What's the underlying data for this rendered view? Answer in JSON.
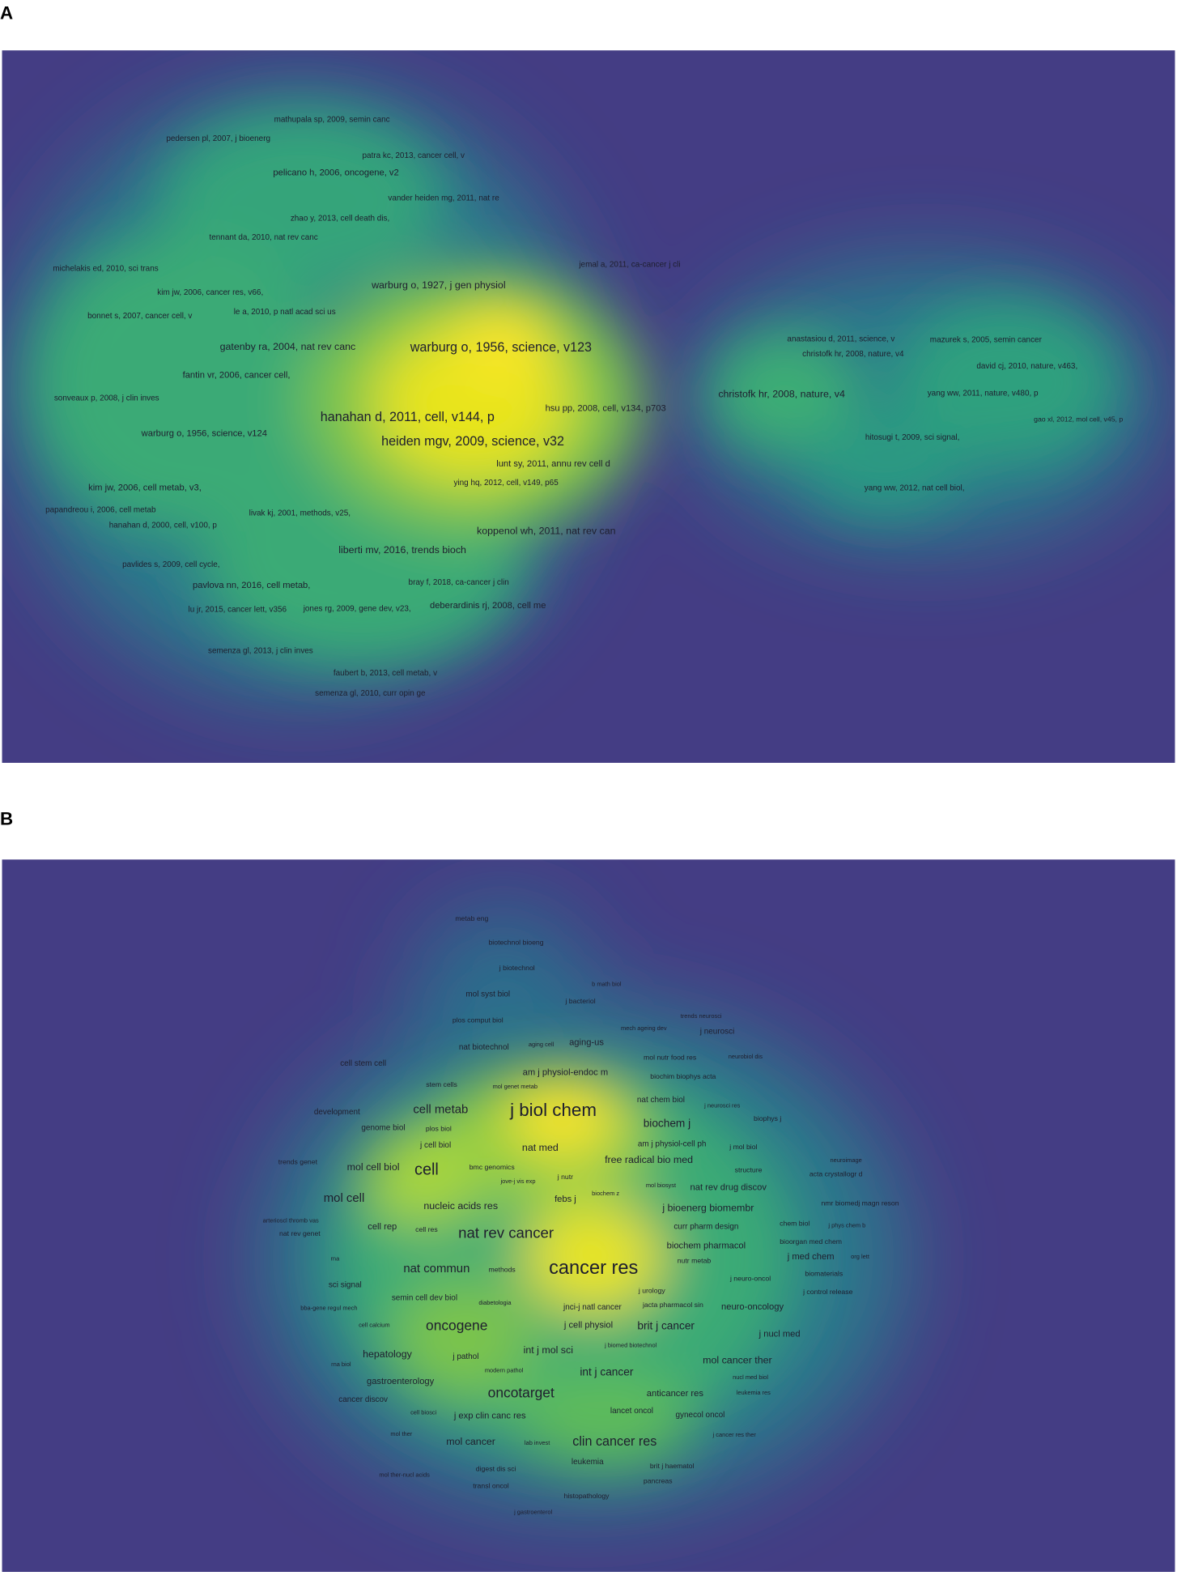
{
  "panel_a": {
    "label": "A",
    "items": [
      "mathupala sp, 2009, semin canc",
      "pedersen pl, 2007, j bioenerg",
      "patra kc, 2013, cancer cell, v",
      "pelicano h, 2006, oncogene, v2",
      "vander heiden mg, 2011, nat re",
      "zhao y, 2013, cell death dis,",
      "tennant da, 2010, nat rev canc",
      "michelakis ed, 2010, sci trans",
      "jemal a, 2011, ca-cancer j cli",
      "warburg o, 1927, j gen physiol",
      "kim jw, 2006, cancer res, v66,",
      "le a, 2010, p natl acad sci us",
      "bonnet s, 2007, cancer cell, v",
      "gatenby ra, 2004, nat rev canc",
      "warburg o, 1956, science, v123",
      "fantin vr, 2006, cancer cell,",
      "sonveaux p, 2008, j clin inves",
      "christofk hr, 2008, nature, v4",
      "hsu pp, 2008, cell, v134, p703",
      "hanahan d, 2011, cell, v144, p",
      "warburg o, 1956, science, v124",
      "heiden mgv, 2009, science, v32",
      "lunt sy, 2011, annu rev cell d",
      "ying hq, 2012, cell, v149, p65",
      "kim jw, 2006, cell metab, v3,",
      "papandreou i, 2006, cell metab",
      "livak kj, 2001, methods, v25,",
      "hanahan d, 2000, cell, v100, p",
      "koppenol wh, 2011, nat rev can",
      "liberti mv, 2016, trends bioch",
      "pavlides s, 2009, cell cycle,",
      "bray f, 2018, ca-cancer j clin",
      "pavlova nn, 2016, cell metab,",
      "lu jr, 2015, cancer lett, v356",
      "jones rg, 2009, gene dev, v23,",
      "deberardinis rj, 2008, cell me",
      "semenza gl, 2013, j clin inves",
      "faubert b, 2013, cell metab, v",
      "semenza gl, 2010, curr opin ge",
      "anastasiou d, 2011, science, v",
      "mazurek s, 2005, semin cancer",
      "christofk hr, 2008, nature, v4",
      "david cj, 2010, nature, v463,",
      "yang ww, 2011, nature, v480, p",
      "gao xl, 2012, mol cell, v45, p",
      "hitosugi t, 2009, sci signal,",
      "yang ww, 2012, nat cell biol,"
    ]
  },
  "panel_b": {
    "label": "B",
    "items": [
      "metab eng",
      "biotechnol bioeng",
      "j biotechnol",
      "b math biol",
      "mol syst biol",
      "j bacteriol",
      "trends neurosci",
      "plos comput biol",
      "mech ageing dev",
      "j neurosci",
      "nat biotechnol",
      "aging cell",
      "aging-us",
      "mol nutr food res",
      "neurobiol dis",
      "cell stem cell",
      "am j physiol-endoc m",
      "stem cells",
      "mol genet metab",
      "biochim biophys acta",
      "development",
      "cell metab",
      "j biol chem",
      "nat chem biol",
      "j neurosci res",
      "biophys j",
      "genome biol",
      "plos biol",
      "biochem j",
      "j cell biol",
      "am j physiol-cell ph",
      "j mol biol",
      "nat med",
      "trends genet",
      "mol cell biol",
      "cell",
      "bmc genomics",
      "free radical bio med",
      "neuroimage",
      "structure",
      "acta crystallogr d",
      "jove-j vis exp",
      "j nutr",
      "mol biosyst",
      "nat rev drug discov",
      "biochem z",
      "mol cell",
      "febs j",
      "nucleic acids res",
      "j bioenerg biomembr",
      "nmr biomedj magn reson",
      "arterioscl thromb vas",
      "chem biol",
      "j phys chem b",
      "cell rep",
      "cell res",
      "nat rev genet",
      "nat rev cancer",
      "curr pharm design",
      "bioorgan med chem",
      "biochem pharmacol",
      "rna",
      "j med chem",
      "org lett",
      "nutr metab",
      "nat commun",
      "methods",
      "cancer res",
      "biomaterials",
      "j neuro-oncol",
      "sci signal",
      "j urology",
      "j control release",
      "semin cell dev biol",
      "diabetologia",
      "bba-gene regul mech",
      "jnci-j natl cancer",
      "jacta pharmacol sin",
      "neuro-oncology",
      "cell calcium",
      "oncogene",
      "j cell physiol",
      "brit j cancer",
      "j nucl med",
      "j biomed biotechnol",
      "int j mol sci",
      "hepatology",
      "j pathol",
      "mol cancer ther",
      "rna biol",
      "modern pathol",
      "int j cancer",
      "nucl med biol",
      "gastroenterology",
      "oncotarget",
      "anticancer res",
      "leukemia res",
      "cancer discov",
      "cell biosci",
      "lancet oncol",
      "j exp clin canc res",
      "gynecol oncol",
      "mol ther",
      "j cancer res ther",
      "mol cancer",
      "lab invest",
      "clin cancer res",
      "leukemia",
      "brit j haematol",
      "digest dis sci",
      "mol ther-nucl acids",
      "pancreas",
      "transl oncol",
      "histopathology",
      "j gastroenterol"
    ]
  }
}
